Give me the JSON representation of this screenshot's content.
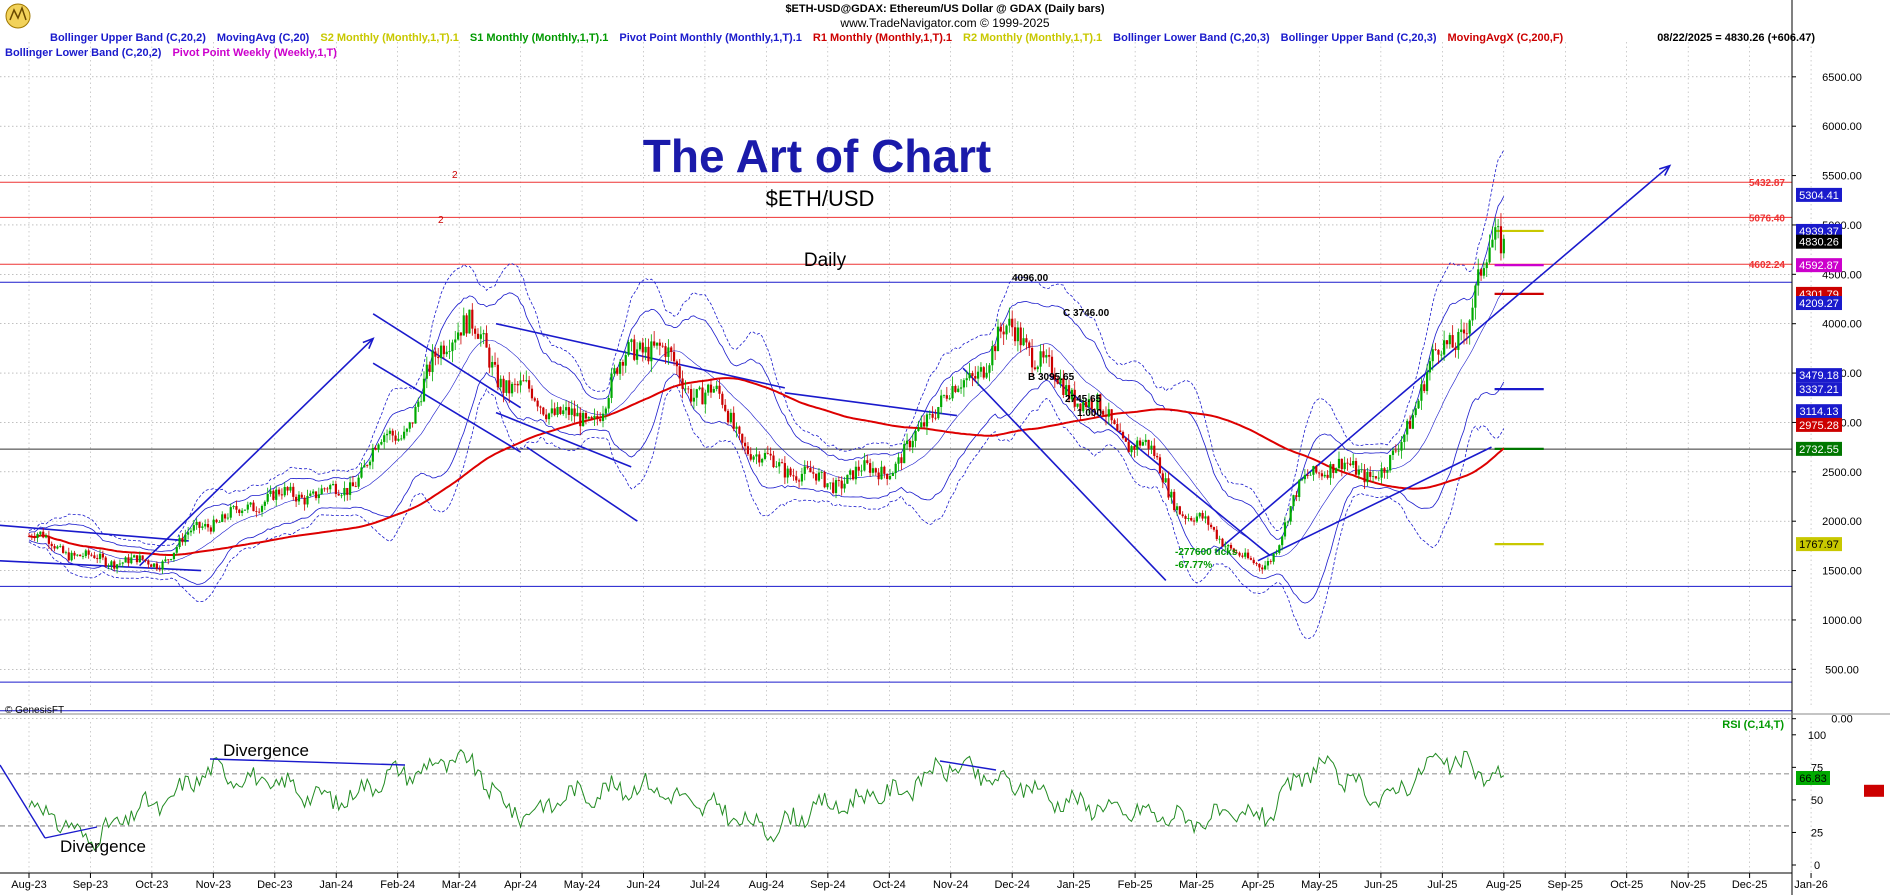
{
  "header": {
    "title": "$ETH-USD@GDAX:  Ethereum/US Dollar @ GDAX  (Daily bars)",
    "subtitle": "www.TradeNavigator.com © 1999-2025"
  },
  "legend": {
    "row1": [
      {
        "text": "Bollinger Upper Band (C,20,2)",
        "color": "#1a1acc"
      },
      {
        "text": "MovingAvg (C,20)",
        "color": "#1a1acc"
      },
      {
        "text": "S2 Monthly (Monthly,1,T).1",
        "color": "#c8c800"
      },
      {
        "text": "S1 Monthly (Monthly,1,T).1",
        "color": "#009900"
      },
      {
        "text": "Pivot Point Monthly (Monthly,1,T).1",
        "color": "#1a1acc"
      },
      {
        "text": "R1 Monthly (Monthly,1,T).1",
        "color": "#cc0000"
      },
      {
        "text": "R2 Monthly (Monthly,1,T).1",
        "color": "#c8c800"
      },
      {
        "text": "Bollinger Lower Band (C,20,3)",
        "color": "#1a1acc"
      },
      {
        "text": "Bollinger Upper Band (C,20,3)",
        "color": "#1a1acc"
      },
      {
        "text": "MovingAvgX (C,200,F)",
        "color": "#cc0000"
      }
    ],
    "row2": [
      {
        "text": "Bollinger Lower Band (C,20,2)",
        "color": "#1a1acc"
      },
      {
        "text": "Pivot Point Weekly (Weekly,1,T)",
        "color": "#cc00cc"
      }
    ],
    "last_quote": "08/22/2025 = 4830.26 (+606.47)"
  },
  "annotations": {
    "brand_title": "The Art of Chart",
    "symbol": "$ETH/USD",
    "timeframe": "Daily",
    "copyright": "© GenesisFT",
    "drop_ticks": "-277600 ticks",
    "drop_pct": "-67.77%",
    "divergence_top": "Divergence",
    "divergence_bottom": "Divergence",
    "peak_label": "4096.00",
    "c_label": "C 3746.00",
    "b_label": "B 3095.65",
    "level_label": "2745.65",
    "ratio_label": "1.000",
    "fib_mark_1": "2",
    "fib_mark_2": "2"
  },
  "colors": {
    "price_up": "#00aa00",
    "price_down": "#cc0000",
    "bollinger": "#1a1acc",
    "ma200": "#dd0000",
    "trendline": "#1a1acc",
    "rsi": "#228b22",
    "brand_title": "#1a1aaa",
    "axis_text": "#000000",
    "grid": "#9a9a9a"
  },
  "chart_data": [
    {
      "type": "candlestick",
      "title": "$ETH-USD@GDAX:  Ethereum/US Dollar @ GDAX  (Daily bars)",
      "x_ticks": [
        "Aug-23",
        "Sep-23",
        "Oct-23",
        "Nov-23",
        "Dec-23",
        "Jan-24",
        "Feb-24",
        "Mar-24",
        "Apr-24",
        "May-24",
        "Jun-24",
        "Jul-24",
        "Aug-24",
        "Sep-24",
        "Oct-24",
        "Nov-24",
        "Dec-24",
        "Jan-25",
        "Feb-25",
        "Mar-25",
        "Apr-25",
        "May-25",
        "Jun-25",
        "Jul-25",
        "Aug-25",
        "Sep-25",
        "Oct-25",
        "Nov-25",
        "Dec-25",
        "Jan-26"
      ],
      "y_ticks": [
        "6500.00",
        "6000.00",
        "5500.00",
        "5000.00",
        "4500.00",
        "4000.00",
        "3500.00",
        "3000.00",
        "2500.00",
        "2000.00",
        "1500.00",
        "1000.00",
        "500.00",
        "0.00"
      ],
      "ylim": [
        -100,
        6600
      ],
      "grid": true,
      "price_path": [
        {
          "month": "Aug-23",
          "close": 1850
        },
        {
          "month": "Sep-23",
          "close": 1620
        },
        {
          "month": "Oct-23",
          "close": 1580
        },
        {
          "month": "Nov-23",
          "close": 2000
        },
        {
          "month": "Dec-23",
          "close": 2250
        },
        {
          "month": "Jan-24",
          "close": 2300
        },
        {
          "month": "Feb-24",
          "close": 2900
        },
        {
          "month": "Mar-24",
          "close": 4000
        },
        {
          "month": "Apr-24",
          "close": 3300
        },
        {
          "month": "May-24",
          "close": 3000
        },
        {
          "month": "Jun-24",
          "close": 3800
        },
        {
          "month": "Jul-24",
          "close": 3300
        },
        {
          "month": "Aug-24",
          "close": 2600
        },
        {
          "month": "Sep-24",
          "close": 2400
        },
        {
          "month": "Oct-24",
          "close": 2550
        },
        {
          "month": "Nov-24",
          "close": 3300
        },
        {
          "month": "Dec-24",
          "close": 3900
        },
        {
          "month": "Jan-25",
          "close": 3300
        },
        {
          "month": "Feb-25",
          "close": 2800
        },
        {
          "month": "Mar-25",
          "close": 2000
        },
        {
          "month": "Apr-25",
          "close": 1550
        },
        {
          "month": "May-25",
          "close": 2550
        },
        {
          "month": "Jun-25",
          "close": 2500
        },
        {
          "month": "Jul-25",
          "close": 3700
        },
        {
          "month": "Aug-25",
          "close": 4830
        }
      ],
      "horizontal_levels": [
        {
          "label": "5432.87",
          "value": 5432.87,
          "color": "#ee3333",
          "line": true
        },
        {
          "label": "5076.40",
          "value": 5076.4,
          "color": "#ee3333",
          "line": true
        },
        {
          "label": "4602.24",
          "value": 4602.24,
          "color": "#ee3333",
          "line": true
        },
        {
          "label": "",
          "value": 4420,
          "color": "#1a1acc",
          "line": true
        },
        {
          "label": "",
          "value": 2730,
          "color": "#333333",
          "line": true
        },
        {
          "label": "",
          "value": 1340,
          "color": "#1a1acc",
          "line": true
        },
        {
          "label": "",
          "value": 370,
          "color": "#1a1acc",
          "line": true
        },
        {
          "label": "",
          "value": 80,
          "color": "#1a1acc",
          "line": true
        }
      ],
      "value_tags": [
        {
          "label": "5304.41",
          "value": 5304.41,
          "bg": "#1a1acc",
          "fg": "#ffffff"
        },
        {
          "label": "4939.37",
          "value": 4939.37,
          "bg": "#1a1acc",
          "fg": "#ffffff"
        },
        {
          "label": "4830.26",
          "value": 4830.26,
          "bg": "#000000",
          "fg": "#ffffff"
        },
        {
          "label": "4592.87",
          "value": 4592.87,
          "bg": "#cc00cc",
          "fg": "#ffffff"
        },
        {
          "label": "4301.79",
          "value": 4301.79,
          "bg": "#cc0000",
          "fg": "#ffffff"
        },
        {
          "label": "4209.27",
          "value": 4209.27,
          "bg": "#1a1acc",
          "fg": "#ffffff"
        },
        {
          "label": "3479.18",
          "value": 3479.18,
          "bg": "#1a1acc",
          "fg": "#ffffff"
        },
        {
          "label": "3337.21",
          "value": 3337.21,
          "bg": "#1a1acc",
          "fg": "#ffffff"
        },
        {
          "label": "3114.13",
          "value": 3114.13,
          "bg": "#1a1acc",
          "fg": "#ffffff"
        },
        {
          "label": "2975.28",
          "value": 2975.28,
          "bg": "#cc0000",
          "fg": "#ffffff"
        },
        {
          "label": "2732.55",
          "value": 2732.55,
          "bg": "#007700",
          "fg": "#ffffff"
        },
        {
          "label": "1767.97",
          "value": 1767.97,
          "bg": "#c8c800",
          "fg": "#000000"
        }
      ]
    },
    {
      "type": "line",
      "series_name": "RSI (C,14,T)",
      "y_ticks": [
        "100",
        "75",
        "50",
        "25",
        "0"
      ],
      "ylim": [
        -5,
        110
      ],
      "reference_lines": [
        70,
        30
      ],
      "last_value": "66.83",
      "rsi_path": [
        {
          "month": "Aug-23",
          "value": 45
        },
        {
          "month": "Sep-23",
          "value": 22
        },
        {
          "month": "Oct-23",
          "value": 45
        },
        {
          "month": "Nov-23",
          "value": 72
        },
        {
          "month": "Dec-23",
          "value": 62
        },
        {
          "month": "Jan-24",
          "value": 50
        },
        {
          "month": "Feb-24",
          "value": 70
        },
        {
          "month": "Mar-24",
          "value": 80
        },
        {
          "month": "Apr-24",
          "value": 40
        },
        {
          "month": "May-24",
          "value": 55
        },
        {
          "month": "Jun-24",
          "value": 60
        },
        {
          "month": "Jul-24",
          "value": 45
        },
        {
          "month": "Aug-24",
          "value": 28
        },
        {
          "month": "Sep-24",
          "value": 45
        },
        {
          "month": "Oct-24",
          "value": 55
        },
        {
          "month": "Nov-24",
          "value": 75
        },
        {
          "month": "Dec-24",
          "value": 62
        },
        {
          "month": "Jan-25",
          "value": 48
        },
        {
          "month": "Feb-25",
          "value": 40
        },
        {
          "month": "Mar-25",
          "value": 35
        },
        {
          "month": "Apr-25",
          "value": 38
        },
        {
          "month": "May-25",
          "value": 75
        },
        {
          "month": "Jun-25",
          "value": 52
        },
        {
          "month": "Jul-25",
          "value": 80
        },
        {
          "month": "Aug-25",
          "value": 67
        }
      ]
    }
  ]
}
